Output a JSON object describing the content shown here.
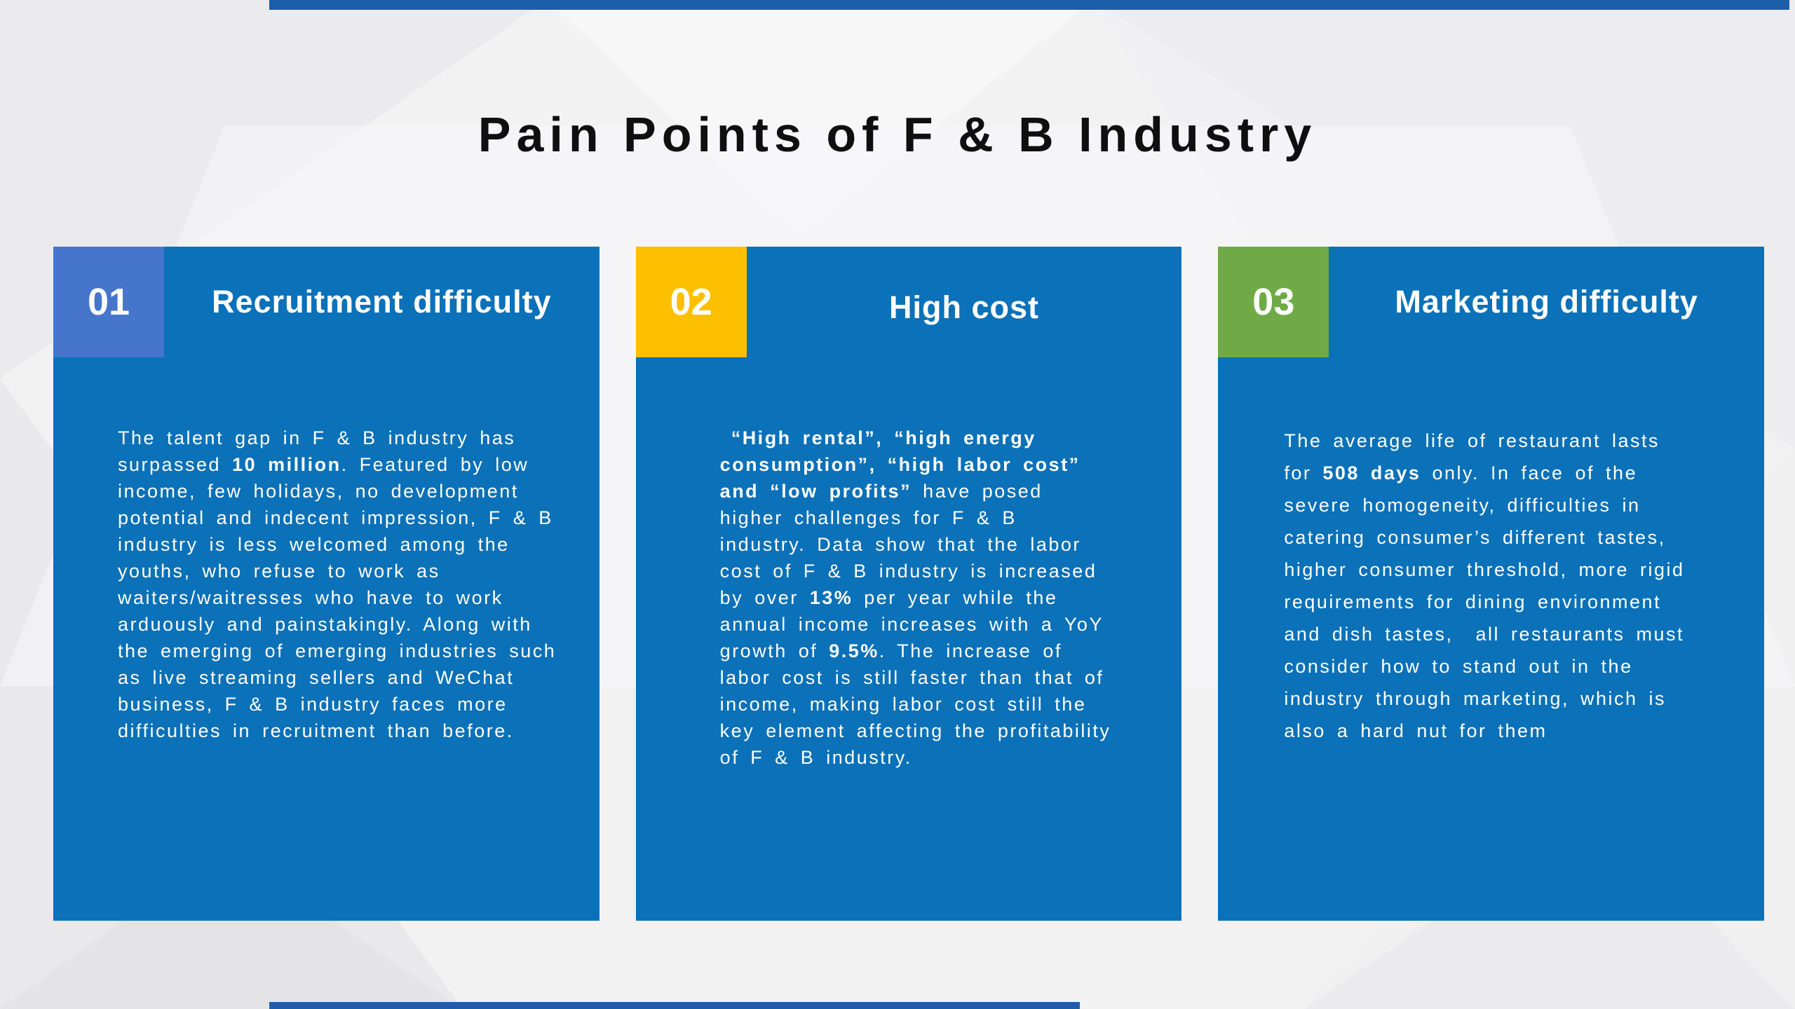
{
  "slide": {
    "title": "Pain Points of F & B Industry"
  },
  "decor": {
    "edge_bar_color": "#1c5fa8",
    "card_color": "#0b71b8"
  },
  "cards": [
    {
      "number": "01",
      "badge_color": "#4576cb",
      "card_color": "#0b71b8",
      "title": "Recruitment difficulty",
      "body": [
        {
          "text": "The talent gap in F & B industry has surpassed ",
          "bold": false
        },
        {
          "text": "10 million",
          "bold": true
        },
        {
          "text": ". Featured by low income, few holidays, no development potential and indecent impression, F & B industry is less welcomed among the youths, who refuse to work as waiters/waitresses who have to work arduously and painstakingly. Along with the emerging of emerging industries such as live streaming sellers and WeChat business, F & B industry faces more difficulties in recruitment than before.",
          "bold": false
        }
      ]
    },
    {
      "number": "02",
      "badge_color": "#fcc000",
      "card_color": "#0b71b8",
      "title": "High cost",
      "body": [
        {
          "text": " “High rental”, “high energy consumption”, “high labor cost” and “low profits”",
          "bold": true
        },
        {
          "text": " have posed higher challenges for F & B industry. Data show that the labor cost of F & B industry is increased by over ",
          "bold": false
        },
        {
          "text": "13%",
          "bold": true
        },
        {
          "text": " per year while the annual income increases with a YoY growth of ",
          "bold": false
        },
        {
          "text": "9.5%",
          "bold": true
        },
        {
          "text": ". The increase of labor cost is still faster than that of income, making labor cost still the key element affecting the profitability of F & B industry.",
          "bold": false
        }
      ]
    },
    {
      "number": "03",
      "badge_color": "#6faa47",
      "card_color": "#0b71b8",
      "title": "Marketing difficulty",
      "body": [
        {
          "text": "The average life of restaurant lasts for ",
          "bold": false
        },
        {
          "text": "508 days",
          "bold": true
        },
        {
          "text": " only. In face of the severe homogeneity, difficulties in catering consumer’s different tastes, higher consumer threshold, more rigid requirements for dining environment and dish tastes,  all restaurants must consider how to stand out in the industry through marketing, which is also a hard nut for them",
          "bold": false
        }
      ]
    }
  ]
}
